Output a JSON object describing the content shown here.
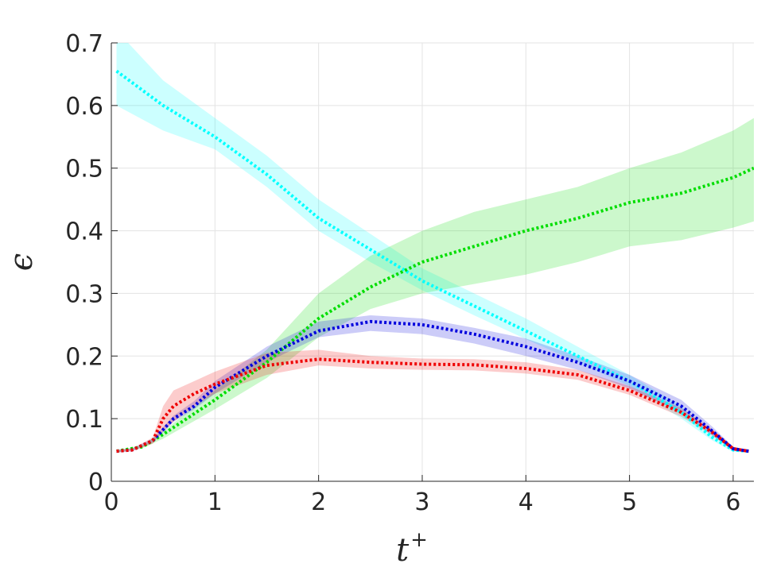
{
  "chart_data": {
    "type": "line",
    "xlabel": "t",
    "xlabel_sup": "+",
    "ylabel": "ϵ",
    "xlim": [
      0,
      6.2
    ],
    "ylim": [
      0,
      0.7
    ],
    "xticks": [
      0,
      1,
      2,
      3,
      4,
      5,
      6
    ],
    "yticks": [
      0,
      0.1,
      0.2,
      0.3,
      0.4,
      0.5,
      0.6,
      0.7
    ],
    "xtick_labels": [
      "0",
      "1",
      "2",
      "3",
      "4",
      "5",
      "6"
    ],
    "ytick_labels": [
      "0",
      "0.1",
      "0.2",
      "0.3",
      "0.4",
      "0.5",
      "0.6",
      "0.7"
    ],
    "grid": true,
    "legend": "none",
    "series": [
      {
        "color": "#00ffff",
        "line_style": "dotted",
        "x": [
          0.05,
          0.5,
          1.0,
          1.5,
          2.0,
          2.5,
          3.0,
          3.5,
          4.0,
          4.5,
          5.0,
          5.5,
          5.8,
          6.0,
          6.15
        ],
        "y": [
          0.655,
          0.6,
          0.55,
          0.49,
          0.42,
          0.37,
          0.32,
          0.28,
          0.24,
          0.2,
          0.16,
          0.11,
          0.07,
          0.05,
          0.048
        ],
        "band_lower": [
          0.6,
          0.56,
          0.53,
          0.47,
          0.4,
          0.35,
          0.305,
          0.265,
          0.227,
          0.19,
          0.152,
          0.1,
          0.065,
          0.047,
          0.046
        ],
        "band_upper": [
          0.72,
          0.64,
          0.58,
          0.52,
          0.45,
          0.395,
          0.34,
          0.3,
          0.26,
          0.215,
          0.17,
          0.12,
          0.075,
          0.053,
          0.05
        ]
      },
      {
        "color": "#00dd00",
        "line_style": "dotted",
        "x": [
          0.05,
          0.3,
          0.5,
          1.0,
          1.5,
          2.0,
          2.5,
          3.0,
          3.5,
          4.0,
          4.5,
          5.0,
          5.5,
          6.0,
          6.2
        ],
        "y": [
          0.048,
          0.055,
          0.075,
          0.13,
          0.19,
          0.26,
          0.31,
          0.35,
          0.375,
          0.4,
          0.42,
          0.445,
          0.46,
          0.485,
          0.5
        ],
        "band_lower": [
          0.046,
          0.053,
          0.068,
          0.115,
          0.165,
          0.23,
          0.275,
          0.3,
          0.315,
          0.33,
          0.35,
          0.375,
          0.385,
          0.405,
          0.415
        ],
        "band_upper": [
          0.05,
          0.057,
          0.08,
          0.145,
          0.21,
          0.3,
          0.36,
          0.4,
          0.43,
          0.45,
          0.47,
          0.5,
          0.525,
          0.56,
          0.58
        ]
      },
      {
        "color": "#0000dd",
        "line_style": "dotted",
        "x": [
          0.05,
          0.2,
          0.4,
          0.6,
          0.8,
          1.0,
          1.5,
          2.0,
          2.5,
          3.0,
          3.5,
          4.0,
          4.5,
          5.0,
          5.5,
          5.8,
          6.0,
          6.15
        ],
        "y": [
          0.048,
          0.05,
          0.065,
          0.1,
          0.12,
          0.15,
          0.2,
          0.24,
          0.255,
          0.25,
          0.235,
          0.215,
          0.19,
          0.16,
          0.12,
          0.08,
          0.052,
          0.048
        ],
        "band_lower": [
          0.046,
          0.048,
          0.062,
          0.095,
          0.115,
          0.14,
          0.19,
          0.23,
          0.24,
          0.235,
          0.22,
          0.2,
          0.178,
          0.148,
          0.11,
          0.073,
          0.049,
          0.046
        ],
        "band_upper": [
          0.05,
          0.052,
          0.068,
          0.105,
          0.128,
          0.16,
          0.215,
          0.255,
          0.265,
          0.26,
          0.245,
          0.228,
          0.2,
          0.17,
          0.13,
          0.087,
          0.055,
          0.05
        ]
      },
      {
        "color": "#ee0000",
        "line_style": "dotted",
        "x": [
          0.05,
          0.2,
          0.4,
          0.5,
          0.6,
          0.8,
          1.0,
          1.5,
          2.0,
          2.5,
          3.0,
          3.5,
          4.0,
          4.5,
          5.0,
          5.5,
          5.8,
          6.0,
          6.15
        ],
        "y": [
          0.048,
          0.05,
          0.065,
          0.1,
          0.12,
          0.14,
          0.155,
          0.185,
          0.195,
          0.19,
          0.187,
          0.186,
          0.18,
          0.17,
          0.145,
          0.11,
          0.078,
          0.052,
          0.048
        ],
        "band_lower": [
          0.046,
          0.048,
          0.06,
          0.08,
          0.095,
          0.12,
          0.14,
          0.17,
          0.185,
          0.18,
          0.178,
          0.177,
          0.172,
          0.162,
          0.138,
          0.103,
          0.073,
          0.049,
          0.046
        ],
        "band_upper": [
          0.05,
          0.052,
          0.07,
          0.12,
          0.145,
          0.16,
          0.175,
          0.205,
          0.21,
          0.2,
          0.196,
          0.195,
          0.19,
          0.178,
          0.152,
          0.117,
          0.083,
          0.055,
          0.05
        ]
      }
    ]
  }
}
